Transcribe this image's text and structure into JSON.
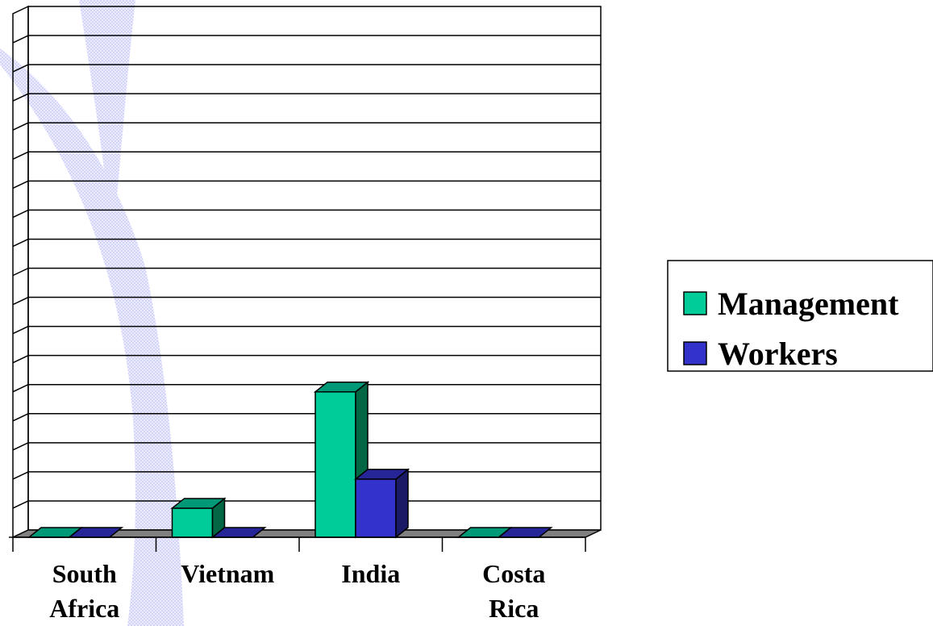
{
  "chart_data": {
    "type": "bar",
    "style": "3d-clustered-column",
    "categories": [
      [
        "South",
        "Africa"
      ],
      [
        "Vietnam"
      ],
      [
        "India"
      ],
      [
        "Costa",
        "Rica"
      ]
    ],
    "series": [
      {
        "name": "Management",
        "values": [
          0,
          1,
          5,
          0
        ]
      },
      {
        "name": "Workers",
        "values": [
          0,
          0,
          2,
          0
        ]
      }
    ],
    "ylim": [
      0,
      18
    ],
    "grid": true,
    "legend_position": "right",
    "title": "",
    "xlabel": "",
    "ylabel": ""
  },
  "colors": {
    "management_front": "#00CC99",
    "management_top": "#009977",
    "management_side": "#006644",
    "workers_front": "#3333CC",
    "workers_top": "#262699",
    "workers_side": "#1A1A66",
    "floor": "#808080",
    "watermark": "#DDDDFF"
  }
}
